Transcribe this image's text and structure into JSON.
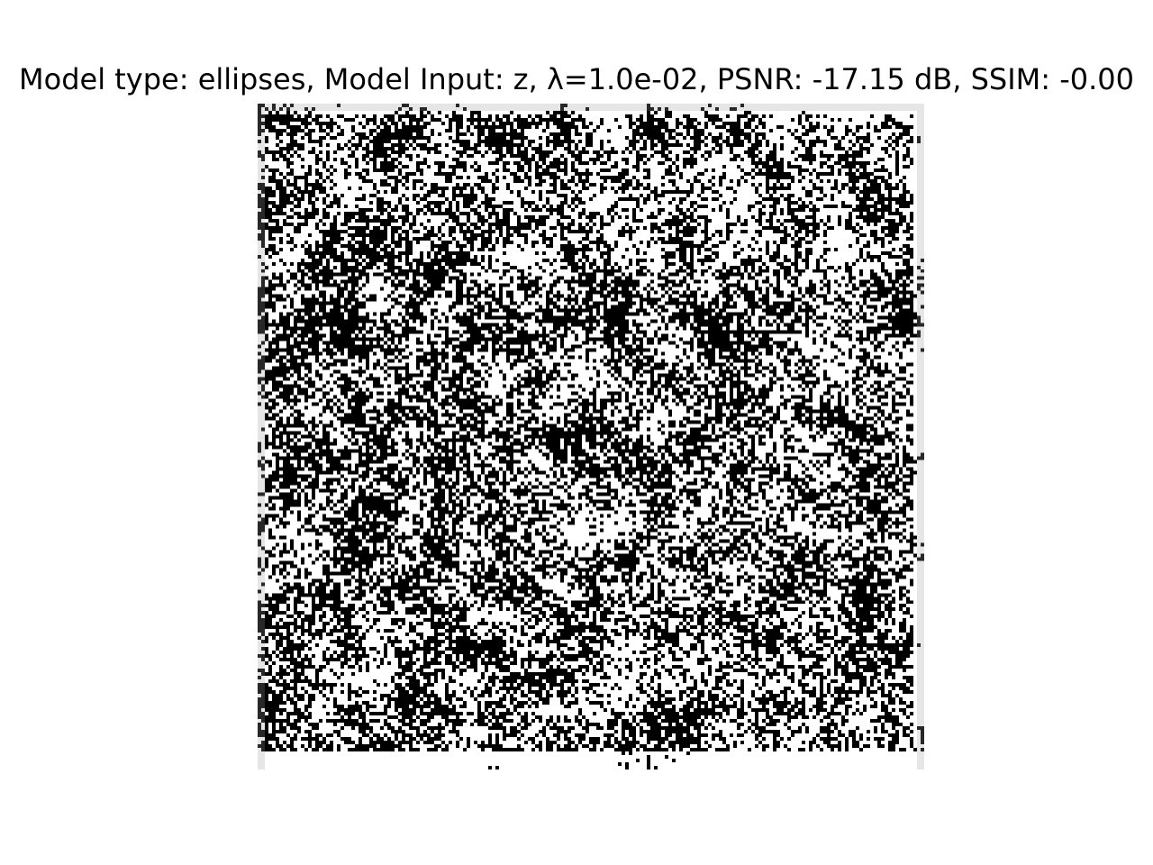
{
  "figure": {
    "title": "Model type: ellipses, Model Input: z, λ=1.0e-02, PSNR: -17.15 dB, SSIM: -0.00"
  },
  "image": {
    "description": "",
    "colormap": "gray",
    "background_color": "#ffffff",
    "foreground_color": "#000000"
  }
}
